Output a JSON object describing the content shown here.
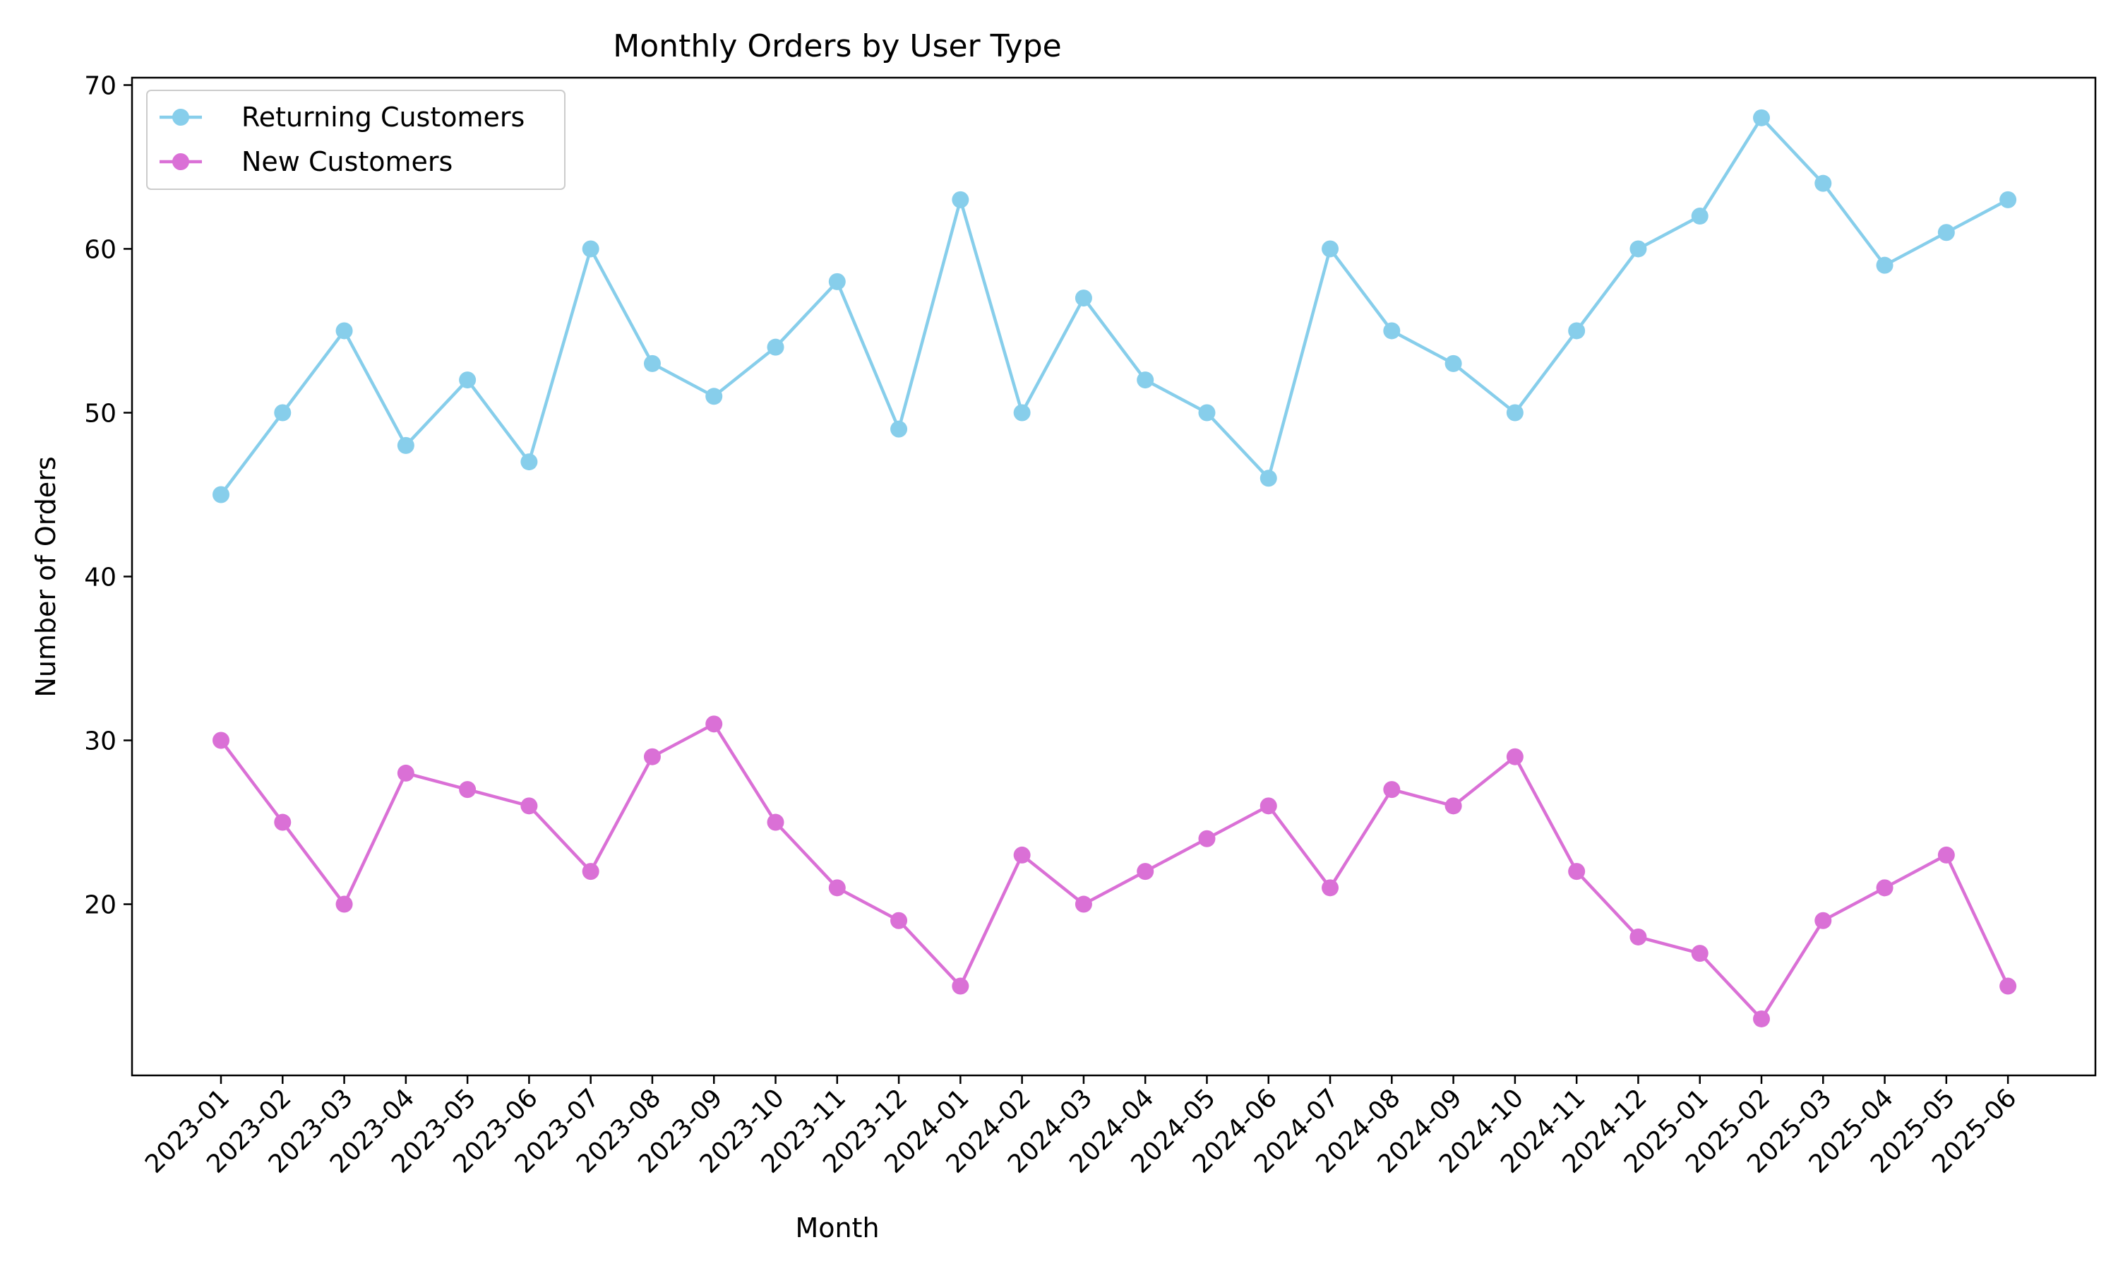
{
  "chart_data": {
    "type": "line",
    "title": "Monthly Orders by User Type",
    "xlabel": "Month",
    "ylabel": "Number of Orders",
    "x": [
      "2023-01",
      "2023-02",
      "2023-03",
      "2023-04",
      "2023-05",
      "2023-06",
      "2023-07",
      "2023-08",
      "2023-09",
      "2023-10",
      "2023-11",
      "2023-12",
      "2024-01",
      "2024-02",
      "2024-03",
      "2024-04",
      "2024-05",
      "2024-06",
      "2024-07",
      "2024-08",
      "2024-09",
      "2024-10",
      "2024-11",
      "2024-12",
      "2025-01",
      "2025-02",
      "2025-03",
      "2025-04",
      "2025-05",
      "2025-06"
    ],
    "series": [
      {
        "name": "Returning Customers",
        "color": "#87ceeb",
        "values": [
          45,
          50,
          55,
          48,
          52,
          47,
          60,
          53,
          51,
          54,
          58,
          49,
          63,
          50,
          57,
          52,
          50,
          46,
          60,
          55,
          53,
          50,
          55,
          60,
          62,
          68,
          64,
          59,
          61,
          63
        ]
      },
      {
        "name": "New Customers",
        "color": "#da70d6",
        "values": [
          30,
          25,
          20,
          28,
          27,
          26,
          22,
          29,
          31,
          25,
          21,
          19,
          15,
          23,
          20,
          22,
          24,
          26,
          21,
          27,
          26,
          29,
          22,
          18,
          17,
          13,
          19,
          21,
          23,
          15
        ]
      }
    ],
    "ylim": [
      10,
      70
    ],
    "yticks": [
      20,
      30,
      40,
      50,
      60,
      70
    ],
    "grid": false,
    "legend_position": "top-left"
  }
}
